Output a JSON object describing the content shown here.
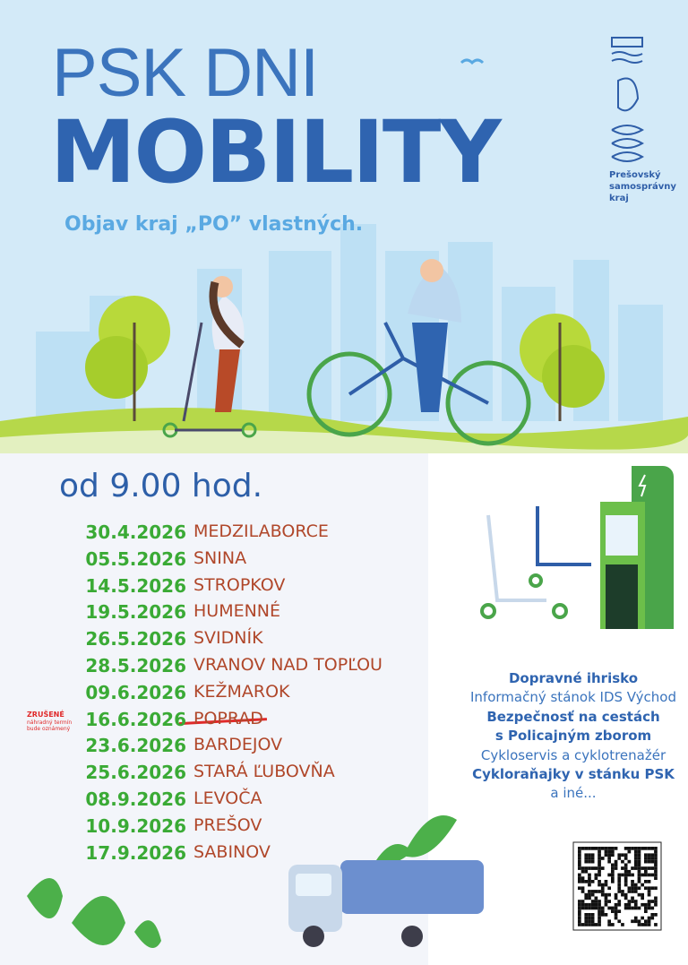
{
  "header": {
    "title_line1": "PSK DNI",
    "title_line2": "MOBILITY",
    "tagline": "Objav kraj „PO” vlastných.",
    "logo_lines": [
      "Prešovský",
      "samosprávny",
      "kraj"
    ]
  },
  "time": "od 9.00 hod.",
  "schedule": [
    {
      "date": "30.4.2026",
      "place": "MEDZILABORCE",
      "cancelled": false
    },
    {
      "date": "05.5.2026",
      "place": "SNINA",
      "cancelled": false
    },
    {
      "date": "14.5.2026",
      "place": "STROPKOV",
      "cancelled": false
    },
    {
      "date": "19.5.2026",
      "place": "HUMENNÉ",
      "cancelled": false
    },
    {
      "date": "26.5.2026",
      "place": "SVIDNÍK",
      "cancelled": false
    },
    {
      "date": "28.5.2026",
      "place": "VRANOV NAD TOPĽOU",
      "cancelled": false
    },
    {
      "date": "09.6.2026",
      "place": "KEŽMAROK",
      "cancelled": false
    },
    {
      "date": "16.6.2026",
      "place": "POPRAD",
      "cancelled": true
    },
    {
      "date": "23.6.2026",
      "place": "BARDEJOV",
      "cancelled": false
    },
    {
      "date": "25.6.2026",
      "place": "STARÁ ĽUBOVŇA",
      "cancelled": false
    },
    {
      "date": "08.9.2026",
      "place": "LEVOČA",
      "cancelled": false
    },
    {
      "date": "10.9.2026",
      "place": "PREŠOV",
      "cancelled": false
    },
    {
      "date": "17.9.2026",
      "place": "SABINOV",
      "cancelled": false
    }
  ],
  "cancel_note": {
    "title": "ZRUŠENÉ",
    "lines": [
      "náhradný termín",
      "bude oznámený"
    ]
  },
  "activities": [
    {
      "text": "Dopravné ihrisko",
      "bold": true
    },
    {
      "text": "Informačný stánok IDS Východ",
      "bold": false
    },
    {
      "text": "Bezpečnosť na cestách",
      "bold": true
    },
    {
      "text": "s Policajným zborom",
      "bold": true
    },
    {
      "text": "Cykloservis a cyklotrenažér",
      "bold": false
    },
    {
      "text": "Cykloraňajky v stánku PSK",
      "bold": true
    },
    {
      "text": "a iné...",
      "bold": false
    }
  ]
}
